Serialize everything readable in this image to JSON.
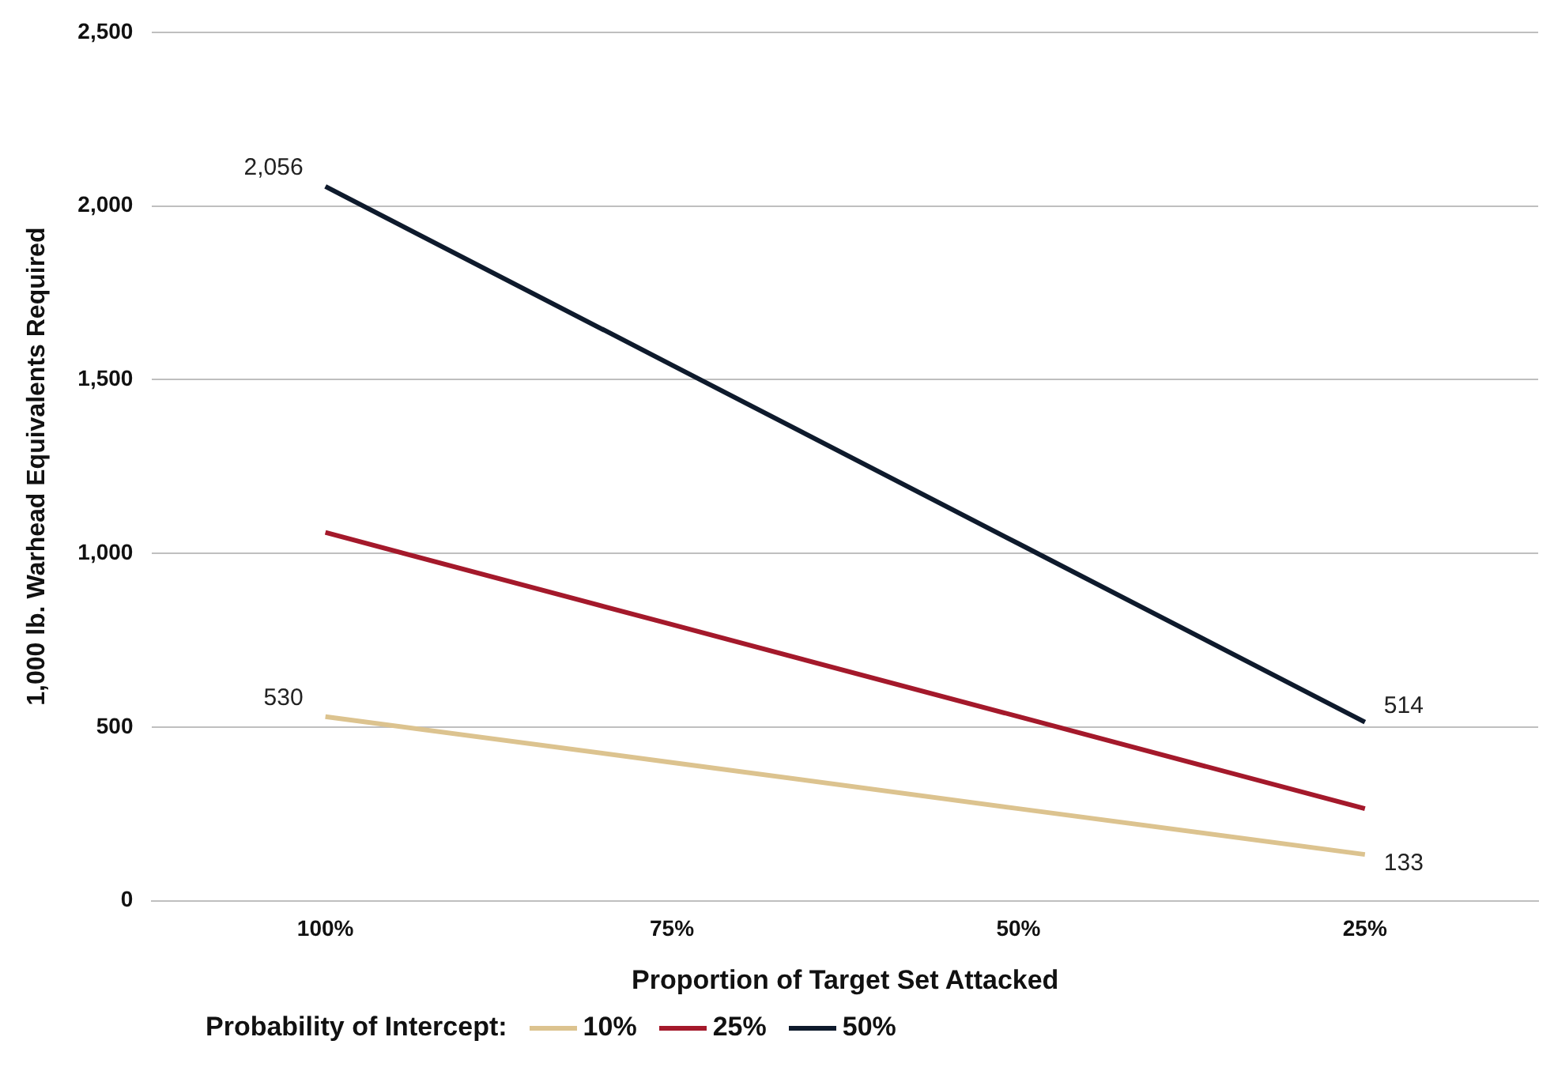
{
  "chart_data": {
    "type": "line",
    "xlabel": "Proportion of Target Set Attacked",
    "ylabel": "1,000 lb. Warhead Equivalents Required",
    "legend_title": "Probability of Intercept:",
    "categories": [
      "100%",
      "75%",
      "50%",
      "25%"
    ],
    "series": [
      {
        "name": "10%",
        "color": "#dcc38f",
        "values": [
          530,
          398,
          265,
          133
        ],
        "value_labels": [
          "530",
          null,
          null,
          "133"
        ]
      },
      {
        "name": "25%",
        "color": "#a4192b",
        "values": [
          1060,
          795,
          530,
          265
        ]
      },
      {
        "name": "50%",
        "color": "#0e1a2c",
        "values": [
          2056,
          1542,
          1028,
          514
        ],
        "value_labels": [
          "2,056",
          null,
          null,
          "514"
        ]
      }
    ],
    "ylim": [
      0,
      2500
    ],
    "yticks": [
      0,
      500,
      {
        "value": 1000,
        "label": "1,000"
      },
      {
        "value": 1500,
        "label": "1,500"
      },
      {
        "value": 2000,
        "label": "2,000"
      },
      {
        "value": 2500,
        "label": "2,500"
      }
    ],
    "grid": "y",
    "legend": "bottom",
    "marker": "none",
    "line_style": "solid"
  }
}
